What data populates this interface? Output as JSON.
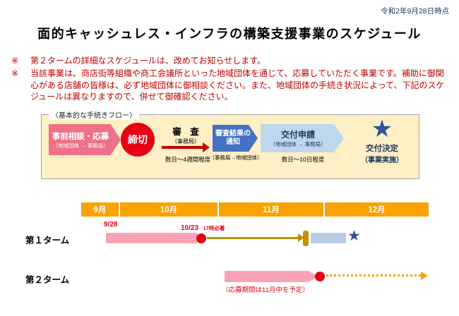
{
  "header": {
    "date_note": "令和2年9月28日時点",
    "title": "面的キャッシュレス・インフラの構築支援事業のスケジュール"
  },
  "notes": {
    "marker1": "※",
    "text1": "第２タームの詳細なスケジュールは、改めてお知らせします。",
    "marker2": "※",
    "text2": "当該事業は、商店街等組織や商工会議所といった地域団体を通じて、応募していただく事業です。補助に御関心がある店舗の皆様は、必ず地域団体に御相談ください。また、地域団体の手続き状況によって、下記のスケジュールは異なりますので、併せて御確認ください。"
  },
  "flow": {
    "label": "〈基本的な手続きフロー〉",
    "apply_title": "事前相談・応募",
    "apply_sub": "（地域団体 → 事務局）",
    "deadline": "締切",
    "review_title": "審　査",
    "review_sub": "（事務局）",
    "review_duration": "数日～4週間程度",
    "notify_title": "審査結果の通知",
    "notify_sub": "（事務局→地域団体）",
    "grant_title": "交付申請",
    "grant_sub": "（地域団体 → 事務局）",
    "grant_duration": "数日～10日程度",
    "decision_star": "★",
    "decision_title": "交付決定",
    "decision_sub": "（事業実施）"
  },
  "gantt": {
    "months": [
      "9月",
      "10月",
      "11月",
      "12月"
    ],
    "row1_label": "第１ターム",
    "row1_start": "9/28",
    "row1_deadline": "10/23",
    "row1_deadline_note": "17時必着",
    "row1_star": "★",
    "row2_label": "第２ターム",
    "row2_note": "（応募期間は11月中を予定）"
  },
  "colors": {
    "note_red": "#c00000",
    "accent_red": "#e60012",
    "flow_pink": "#ee7187",
    "notify_blue": "#4472c4",
    "grant_lightblue": "#bdd7ee",
    "navy": "#1f3864",
    "header_orange": "#f9a200",
    "bar_pink": "#f8a3b5",
    "review_olive": "#bf9000",
    "star_blue": "#2e5597",
    "flow_box_bg": "#ffefc4"
  }
}
